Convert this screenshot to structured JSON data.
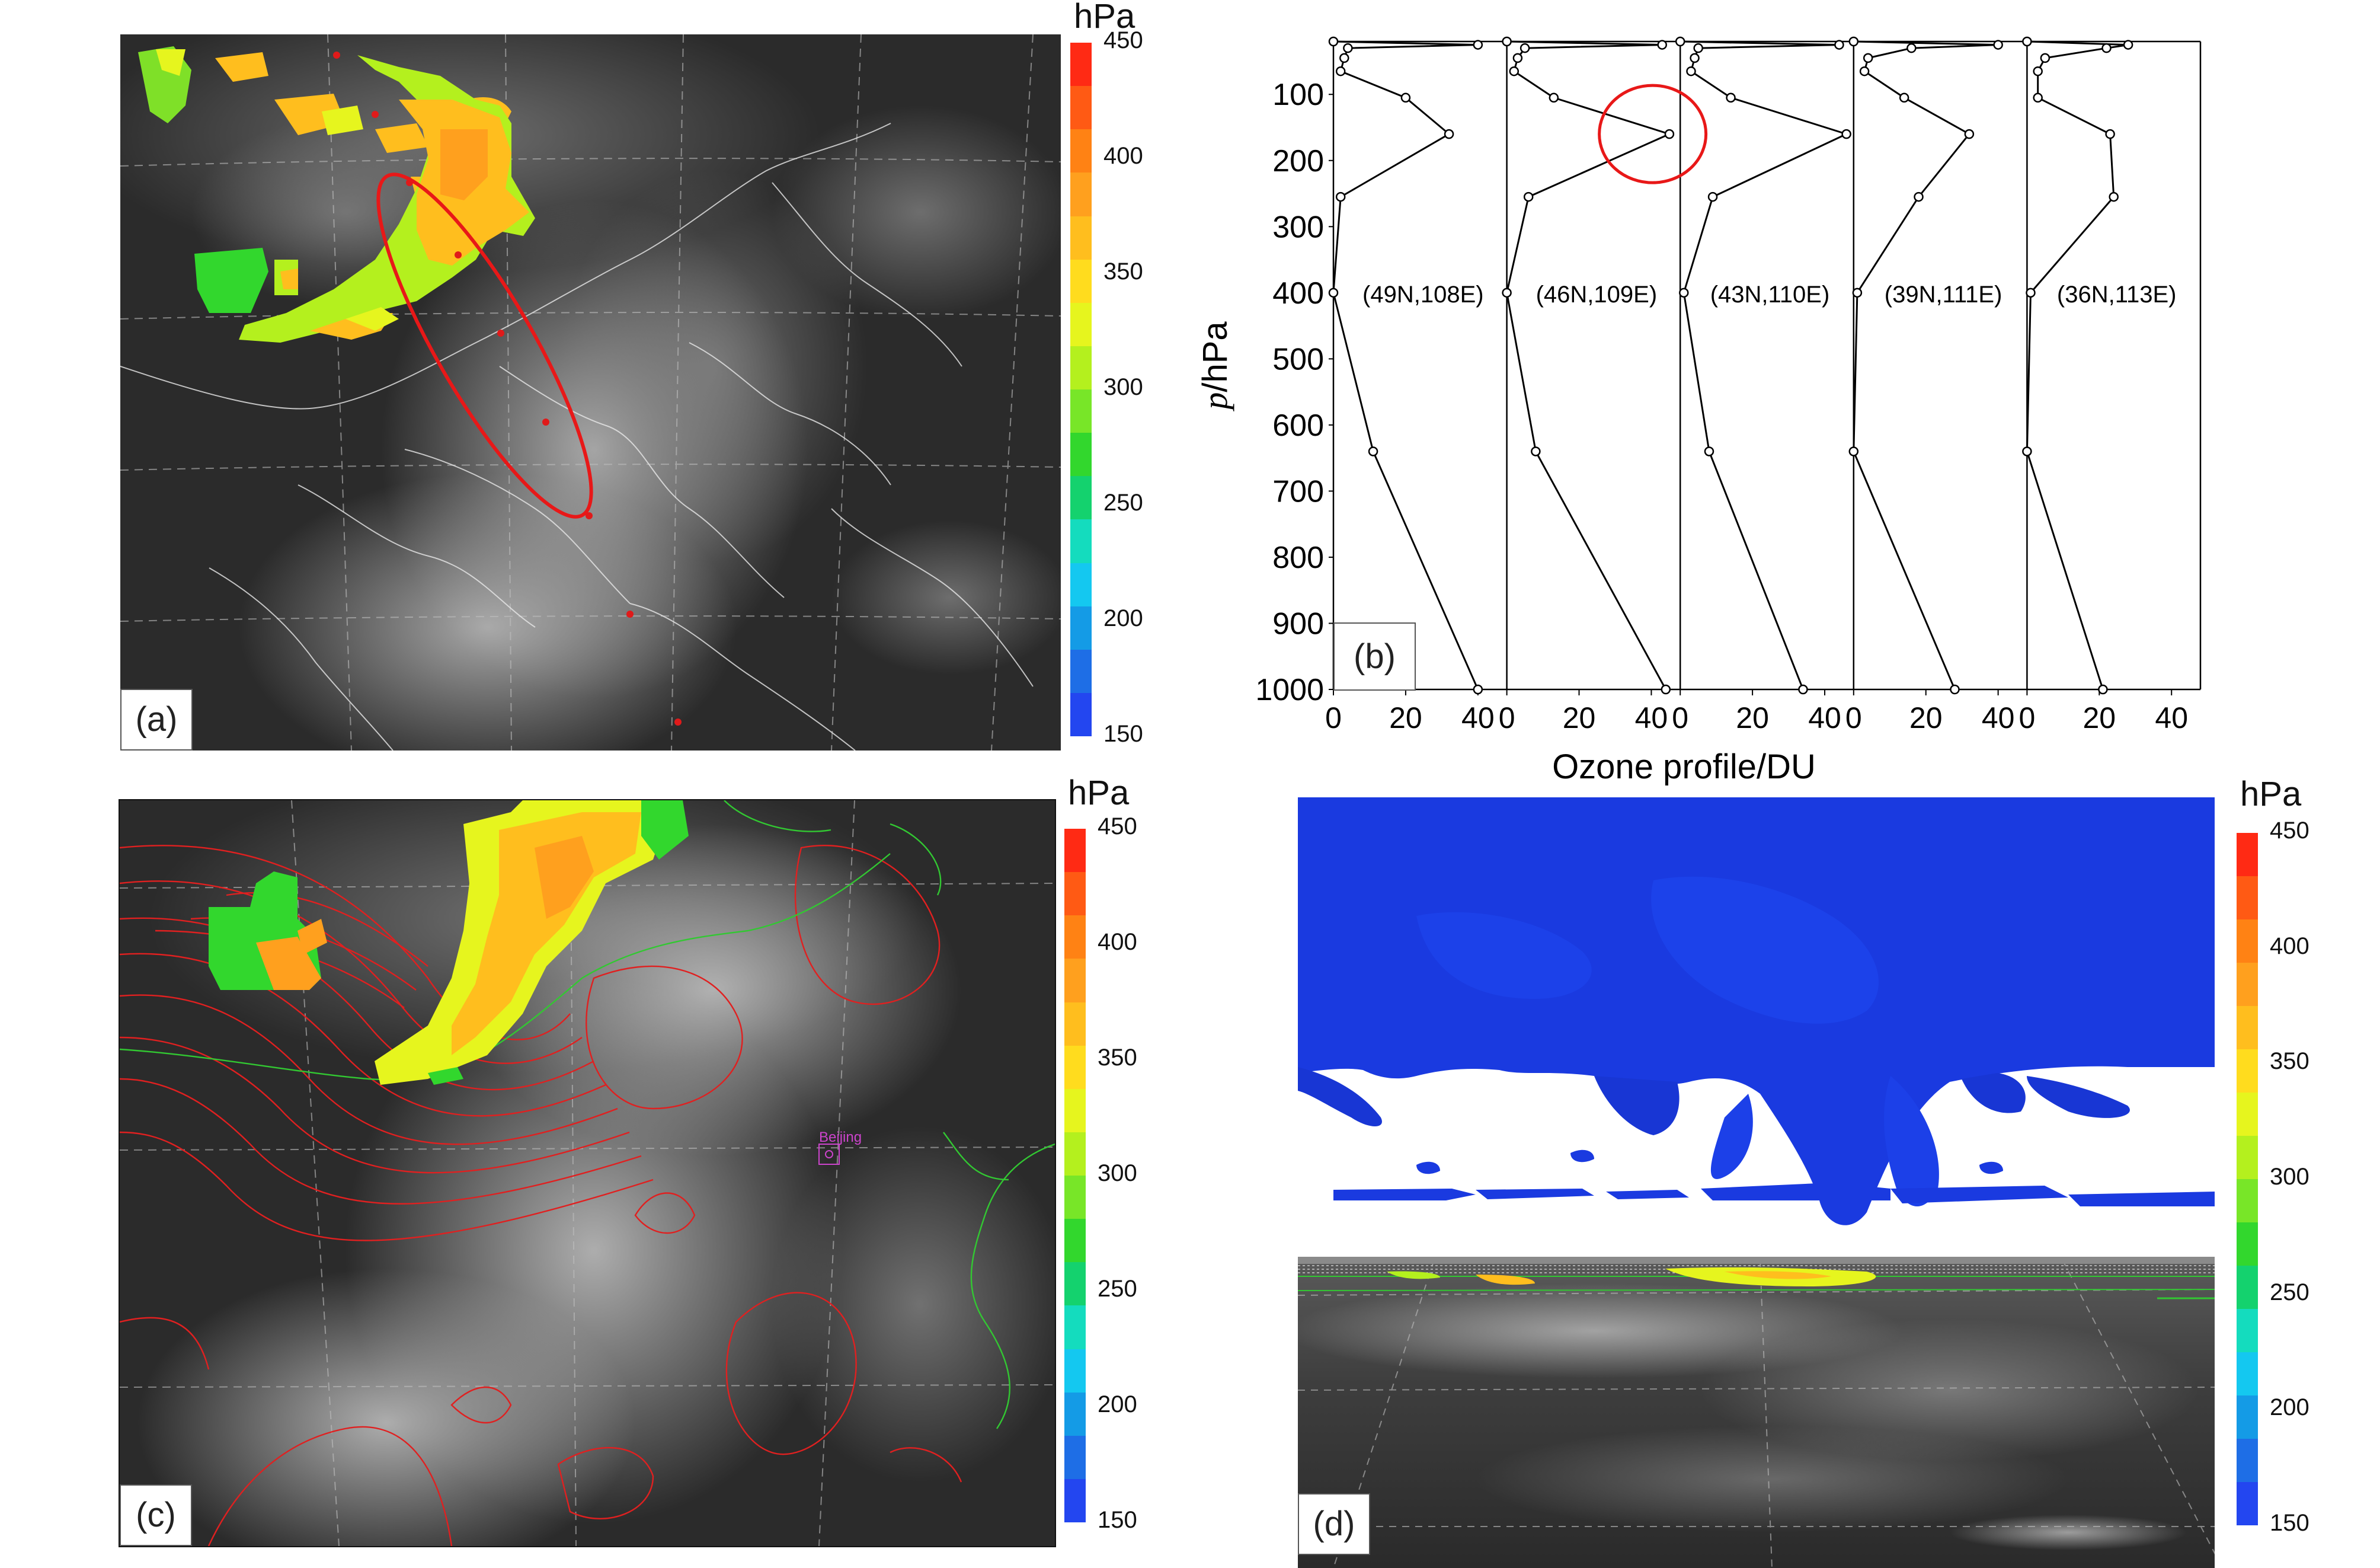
{
  "colorbar": {
    "unit": "hPa",
    "ticks": [
      "450",
      "400",
      "350",
      "300",
      "250",
      "200",
      "150"
    ],
    "colors": [
      "#ff2a14",
      "#ff5a14",
      "#ff8214",
      "#ffa01e",
      "#ffbe1e",
      "#ffdc1e",
      "#e6f51e",
      "#b4f01e",
      "#78e628",
      "#32d72d",
      "#14d26e",
      "#14dcbe",
      "#14c8f0",
      "#149be6",
      "#1e6ee6",
      "#2346f0"
    ]
  },
  "panel_a": {
    "label": "(a)"
  },
  "panel_b": {
    "label": "(b)"
  },
  "panel_c": {
    "label": "(c)",
    "city": "Beijing"
  },
  "panel_d": {
    "label": "(d)"
  },
  "chart_data": [
    {
      "type": "line",
      "panel": "b",
      "xlabel": "Ozone profile/DU",
      "ylabel": "p/hPa",
      "ylim": [
        1000,
        20
      ],
      "y_ticks": [
        100,
        200,
        300,
        400,
        500,
        600,
        700,
        800,
        900,
        1000
      ],
      "x_ticks": [
        0,
        20,
        40
      ],
      "sub_xlim": [
        0,
        48
      ],
      "pressure_levels": [
        20,
        25,
        30,
        45,
        65,
        105,
        160,
        255,
        400,
        640,
        1000
      ],
      "series": [
        {
          "name": "(49N,108E)",
          "values": [
            0,
            40,
            4,
            3,
            2,
            20,
            32,
            2,
            0,
            11,
            40
          ]
        },
        {
          "name": "(46N,109E)",
          "values": [
            0,
            43,
            5,
            3,
            2,
            13,
            45,
            6,
            0,
            8,
            44
          ]
        },
        {
          "name": "(43N,110E)",
          "values": [
            0,
            44,
            5,
            4,
            3,
            14,
            46,
            9,
            1,
            8,
            34
          ]
        },
        {
          "name": "(39N,111E)",
          "values": [
            0,
            40,
            16,
            4,
            3,
            14,
            32,
            18,
            1,
            0,
            28
          ]
        },
        {
          "name": "(36N,113E)",
          "values": [
            0,
            28,
            22,
            5,
            3,
            3,
            23,
            24,
            1,
            0,
            21
          ]
        }
      ]
    }
  ]
}
